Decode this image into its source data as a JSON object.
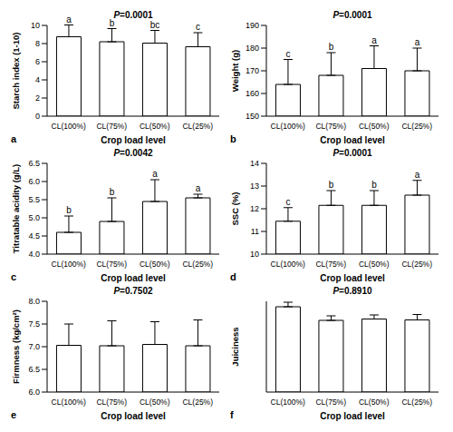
{
  "chart_data": [
    {
      "type": "bar",
      "panel": "a",
      "subtitle": "P=0.0001",
      "xlabel": "Crop load level",
      "ylabel": "Starch index (1-10)",
      "categories": [
        "CL(100%)",
        "CL(75%)",
        "CL(50%)",
        "CL(25%)"
      ],
      "values": [
        8.75,
        8.2,
        8.05,
        7.65
      ],
      "errors": [
        1.3,
        1.45,
        1.4,
        1.55
      ],
      "annotations": [
        "a",
        "b",
        "bc",
        "c"
      ],
      "ylim": [
        0,
        10
      ],
      "yticks": [
        0,
        2,
        4,
        6,
        8,
        10
      ],
      "color": "#ffffff"
    },
    {
      "type": "bar",
      "panel": "b",
      "subtitle": "P=0.0001",
      "xlabel": "Crop load level",
      "ylabel": "Weight (g)",
      "categories": [
        "CL(100%)",
        "CL(75%)",
        "CL(50%)",
        "CL(25%)"
      ],
      "values": [
        164,
        168,
        171,
        170
      ],
      "errors": [
        11,
        10,
        10,
        10
      ],
      "annotations": [
        "c",
        "b",
        "a",
        "a"
      ],
      "ylim": [
        150,
        190
      ],
      "yticks": [
        150,
        160,
        170,
        180,
        190
      ],
      "color": "#ffffff"
    },
    {
      "type": "bar",
      "panel": "c",
      "subtitle": "P=0.0042",
      "xlabel": "Crop load level",
      "ylabel": "Titratable acidity (g/L)",
      "categories": [
        "CL(100%)",
        "CL(75%)",
        "CL(50%)",
        "CL(25%)"
      ],
      "values": [
        4.6,
        4.9,
        5.45,
        5.55
      ],
      "errors": [
        0.45,
        0.65,
        0.6,
        0.1
      ],
      "annotations": [
        "b",
        "b",
        "a",
        "a"
      ],
      "ylim": [
        4,
        6.5
      ],
      "yticks": [
        {
          "value": 4,
          "label": "4.0"
        },
        {
          "value": 4.5,
          "label": "4.5"
        },
        {
          "value": 5,
          "label": "5.0"
        },
        {
          "value": 5.5,
          "label": "5.5"
        },
        {
          "value": 6,
          "label": "6.0"
        },
        {
          "value": 6.5,
          "label": "6.5"
        }
      ],
      "color": "#ffffff"
    },
    {
      "type": "bar",
      "panel": "d",
      "subtitle": "P=0.0001",
      "xlabel": "Crop load level",
      "ylabel": "SSC (%)",
      "categories": [
        "CL(100%)",
        "CL(75%)",
        "CL(50%)",
        "CL(25%)"
      ],
      "values": [
        11.45,
        12.15,
        12.15,
        12.6
      ],
      "errors": [
        0.6,
        0.65,
        0.65,
        0.65
      ],
      "annotations": [
        "c",
        "b",
        "b",
        "a"
      ],
      "ylim": [
        10,
        14
      ],
      "yticks": [
        10,
        11,
        12,
        13,
        14
      ],
      "color": "#ffffff"
    },
    {
      "type": "bar",
      "panel": "e",
      "subtitle": "P=0.7502",
      "xlabel": "Crop load level",
      "ylabel": "Firmness (kg/cm²)",
      "categories": [
        "CL(100%)",
        "CL(75%)",
        "CL(50%)",
        "CL(25%)"
      ],
      "values": [
        7.03,
        7.02,
        7.05,
        7.02
      ],
      "errors": [
        0.47,
        0.55,
        0.5,
        0.57
      ],
      "ylim": [
        6,
        8
      ],
      "yticks": [
        {
          "value": 6,
          "label": "6.0"
        },
        {
          "value": 6.5,
          "label": "6.5"
        },
        {
          "value": 7,
          "label": "7.0"
        },
        {
          "value": 7.5,
          "label": "7.5"
        },
        {
          "value": 8,
          "label": "8.0"
        }
      ],
      "color": "#ffffff"
    },
    {
      "type": "bar",
      "panel": "f",
      "subtitle": "P=0.8910",
      "xlabel": "Crop load level",
      "ylabel": "Juiciness",
      "categories": [
        "CL(100%)",
        "CL(75%)",
        "CL(50%)",
        "CL(25%)"
      ],
      "values": [
        18.8,
        15.8,
        16.1,
        15.9
      ],
      "errors": [
        1.0,
        1.0,
        0.9,
        1.2
      ],
      "ylim": [
        0,
        20
      ],
      "tick_labels": "x",
      "color": "#ffffff"
    }
  ]
}
